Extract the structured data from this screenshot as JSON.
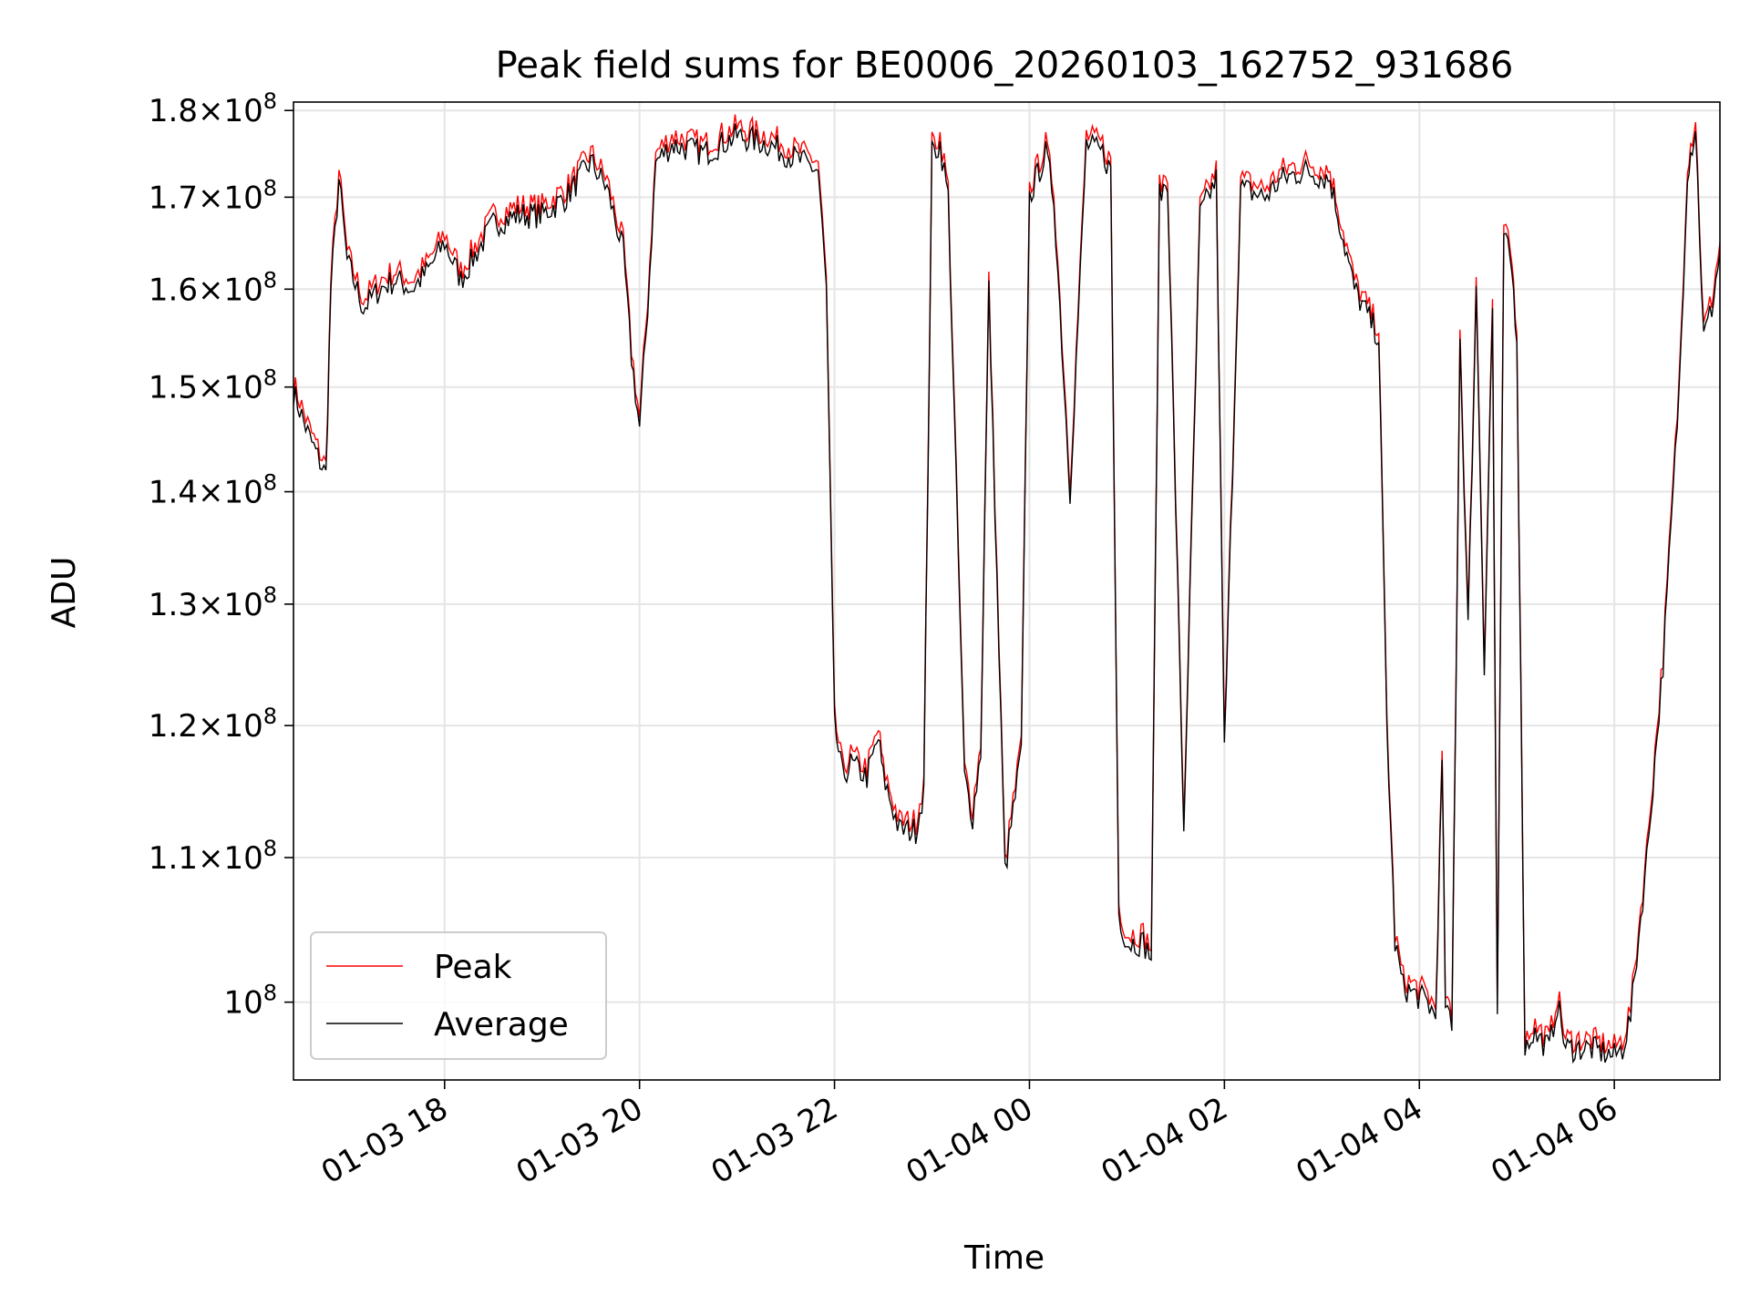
{
  "chart_data": {
    "type": "line",
    "title": "Peak field sums for BE0006_20260103_162752_931686",
    "xlabel": "Time",
    "ylabel": "ADU",
    "x_scale": "time",
    "y_scale": "log",
    "xlim": [
      "2026-01-03 16:27",
      "2026-01-04 07:05"
    ],
    "ylim": [
      95000000,
      181000000
    ],
    "x_ticks": [
      "01-03 18",
      "01-03 20",
      "01-03 22",
      "01-04 00",
      "01-04 02",
      "01-04 04",
      "01-04 06"
    ],
    "y_ticks": [
      {
        "value": 100000000,
        "mantissa": "",
        "exponent": "8"
      },
      {
        "value": 110000000,
        "mantissa": "1.1",
        "exponent": "8"
      },
      {
        "value": 120000000,
        "mantissa": "1.2",
        "exponent": "8"
      },
      {
        "value": 130000000,
        "mantissa": "1.3",
        "exponent": "8"
      },
      {
        "value": 140000000,
        "mantissa": "1.4",
        "exponent": "8"
      },
      {
        "value": 150000000,
        "mantissa": "1.5",
        "exponent": "8"
      },
      {
        "value": 160000000,
        "mantissa": "1.6",
        "exponent": "8"
      },
      {
        "value": 170000000,
        "mantissa": "1.7",
        "exponent": "8"
      },
      {
        "value": 180000000,
        "mantissa": "1.8",
        "exponent": "8"
      }
    ],
    "grid": true,
    "legend_position": "lower-left",
    "series": [
      {
        "name": "Peak",
        "color": "#ff0000",
        "offset_ratio": 1.006
      },
      {
        "name": "Average",
        "color": "#000000",
        "offset_ratio": 1.0
      }
    ],
    "x": [
      "01-03 16:27",
      "01-03 16:37",
      "01-03 16:47",
      "01-03 16:50",
      "01-03 16:55",
      "01-03 17:00",
      "01-03 17:10",
      "01-03 17:20",
      "01-03 17:30",
      "01-03 17:40",
      "01-03 17:50",
      "01-03 18:00",
      "01-03 18:10",
      "01-03 18:20",
      "01-03 18:30",
      "01-03 18:45",
      "01-03 19:00",
      "01-03 19:15",
      "01-03 19:30",
      "01-03 19:40",
      "01-03 19:50",
      "01-03 19:55",
      "01-03 20:00",
      "01-03 20:05",
      "01-03 20:10",
      "01-03 20:20",
      "01-03 20:40",
      "01-03 21:00",
      "01-03 21:20",
      "01-03 21:40",
      "01-03 21:50",
      "01-03 21:55",
      "01-03 22:00",
      "01-03 22:05",
      "01-03 22:10",
      "01-03 22:20",
      "01-03 22:27",
      "01-03 22:30",
      "01-03 22:40",
      "01-03 22:50",
      "01-03 22:55",
      "01-03 23:00",
      "01-03 23:05",
      "01-03 23:10",
      "01-03 23:20",
      "01-03 23:25",
      "01-03 23:30",
      "01-03 23:35",
      "01-03 23:45",
      "01-03 23:55",
      "01-04 00:00",
      "01-04 00:10",
      "01-04 00:15",
      "01-04 00:25",
      "01-04 00:35",
      "01-04 00:45",
      "01-04 00:50",
      "01-04 00:55",
      "01-04 01:00",
      "01-04 01:10",
      "01-04 01:15",
      "01-04 01:20",
      "01-04 01:25",
      "01-04 01:35",
      "01-04 01:45",
      "01-04 01:55",
      "01-04 02:00",
      "01-04 02:10",
      "01-04 02:25",
      "01-04 02:35",
      "01-04 02:50",
      "01-04 03:05",
      "01-04 03:20",
      "01-04 03:35",
      "01-04 03:40",
      "01-04 03:45",
      "01-04 03:50",
      "01-04 04:05",
      "01-04 04:10",
      "01-04 04:14",
      "01-04 04:16",
      "01-04 04:20",
      "01-04 04:25",
      "01-04 04:30",
      "01-04 04:35",
      "01-04 04:40",
      "01-04 04:45",
      "01-04 04:48",
      "01-04 04:52",
      "01-04 04:57",
      "01-04 05:00",
      "01-04 05:05",
      "01-04 05:10",
      "01-04 05:20",
      "01-04 05:25",
      "01-04 05:30",
      "01-04 05:45",
      "01-04 06:00",
      "01-04 06:05",
      "01-04 06:10",
      "01-04 06:20",
      "01-04 06:30",
      "01-04 06:40",
      "01-04 06:45",
      "01-04 06:48",
      "01-04 06:50",
      "01-04 06:55",
      "01-04 07:00",
      "01-04 07:05"
    ],
    "values": [
      149500000,
      145000000,
      141500000,
      160000000,
      172000000,
      163000000,
      158000000,
      160000000,
      161000000,
      160000000,
      162000000,
      165000000,
      161000000,
      164000000,
      167000000,
      168000000,
      168000000,
      170000000,
      174000000,
      171000000,
      164000000,
      153000000,
      146000000,
      158000000,
      174000000,
      176000000,
      175000000,
      177000000,
      176000000,
      174000000,
      173000000,
      160000000,
      120000000,
      116000000,
      117000000,
      116000000,
      119000000,
      116000000,
      112000000,
      112000000,
      115000000,
      175000000,
      176000000,
      170000000,
      116000000,
      113000000,
      118000000,
      160000000,
      109000000,
      118000000,
      170000000,
      175000000,
      170000000,
      140000000,
      176000000,
      175000000,
      173000000,
      106000000,
      104000000,
      104000000,
      103000000,
      170000000,
      172000000,
      112000000,
      168000000,
      172000000,
      118000000,
      171000000,
      170000000,
      172000000,
      173000000,
      172000000,
      160000000,
      155000000,
      120000000,
      104000000,
      101000000,
      100000000,
      99000000,
      117000000,
      100000000,
      98000000,
      155000000,
      128000000,
      160000000,
      125000000,
      158000000,
      99000000,
      166000000,
      162000000,
      155000000,
      97000000,
      98000000,
      97000000,
      100000000,
      97000000,
      97000000,
      96500000,
      97000000,
      99000000,
      110000000,
      125000000,
      150000000,
      173000000,
      176000000,
      178000000,
      155000000,
      158000000,
      164000000
    ]
  }
}
